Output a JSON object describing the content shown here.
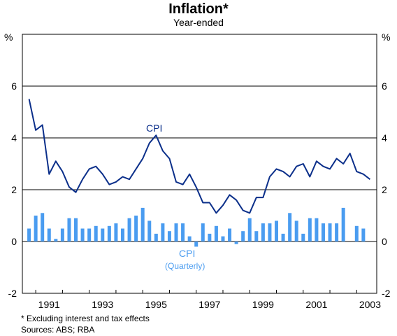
{
  "title": "Inflation*",
  "subtitle": "Year-ended",
  "unit_left": "%",
  "unit_right": "%",
  "footnote": "* Excluding interest and tax effects",
  "sources": "Sources: ABS; RBA",
  "colors": {
    "line": "#0b2f8a",
    "bars": "#4a9cf0",
    "grid": "#000000"
  },
  "chart_data": {
    "type": "line+bar",
    "ylim": [
      -2,
      8
    ],
    "yticks": [
      -2,
      0,
      2,
      4,
      6
    ],
    "xticks": [
      "1991",
      "1993",
      "1995",
      "1997",
      "1999",
      "2001",
      "2003"
    ],
    "x_start": 1990.5,
    "x_end": 2003.75,
    "grid": true,
    "annotations": [
      {
        "text": "CPI",
        "series": "line"
      },
      {
        "text": "CPI",
        "series": "bars"
      },
      {
        "text": "(Quarterly)",
        "series": "bars"
      }
    ],
    "series": [
      {
        "kind": "line",
        "x": [
          1990.75,
          1991.0,
          1991.25,
          1991.5,
          1991.75,
          1992.0,
          1992.25,
          1992.5,
          1992.75,
          1993.0,
          1993.25,
          1993.5,
          1993.75,
          1994.0,
          1994.25,
          1994.5,
          1994.75,
          1995.0,
          1995.25,
          1995.5,
          1995.75,
          1996.0,
          1996.25,
          1996.5,
          1996.75,
          1997.0,
          1997.25,
          1997.5,
          1997.75,
          1998.0,
          1998.25,
          1998.5,
          1998.75,
          1999.0,
          1999.25,
          1999.5,
          1999.75,
          2000.0,
          2000.25,
          2000.5,
          2000.75,
          2001.0,
          2001.25,
          2001.5,
          2001.75,
          2002.0,
          2002.25,
          2002.5,
          2002.75,
          2003.0,
          2003.25,
          2003.5
        ],
        "values": [
          5.5,
          4.3,
          4.5,
          2.6,
          3.1,
          2.7,
          2.1,
          1.9,
          2.4,
          2.8,
          2.9,
          2.6,
          2.2,
          2.3,
          2.5,
          2.4,
          2.8,
          3.2,
          3.8,
          4.1,
          3.5,
          3.2,
          2.3,
          2.2,
          2.6,
          2.1,
          1.5,
          1.5,
          1.1,
          1.4,
          1.8,
          1.6,
          1.2,
          1.1,
          1.7,
          1.7,
          2.5,
          2.8,
          2.7,
          2.5,
          2.9,
          3.0,
          2.5,
          3.1,
          2.9,
          2.8,
          3.2,
          3.0,
          3.4,
          2.7,
          2.6,
          2.4
        ]
      },
      {
        "kind": "bar",
        "x": [
          1990.75,
          1991.0,
          1991.25,
          1991.5,
          1991.75,
          1992.0,
          1992.25,
          1992.5,
          1992.75,
          1993.0,
          1993.25,
          1993.5,
          1993.75,
          1994.0,
          1994.25,
          1994.5,
          1994.75,
          1995.0,
          1995.25,
          1995.5,
          1995.75,
          1996.0,
          1996.25,
          1996.5,
          1996.75,
          1997.0,
          1997.25,
          1997.5,
          1997.75,
          1998.0,
          1998.25,
          1998.5,
          1998.75,
          1999.0,
          1999.25,
          1999.5,
          1999.75,
          2000.0,
          2000.25,
          2000.5,
          2000.75,
          2001.0,
          2001.25,
          2001.5,
          2001.75,
          2002.0,
          2002.25,
          2002.5,
          2002.75,
          2003.0,
          2003.25,
          2003.5
        ],
        "values": [
          0.5,
          1.0,
          1.1,
          0.5,
          0.1,
          0.5,
          0.9,
          0.9,
          0.5,
          0.5,
          0.6,
          0.5,
          0.6,
          0.7,
          0.5,
          0.9,
          1.0,
          1.3,
          0.8,
          0.3,
          0.7,
          0.4,
          0.7,
          0.7,
          0.2,
          -0.2,
          0.7,
          0.3,
          0.6,
          0.2,
          0.5,
          -0.1,
          0.4,
          0.9,
          0.4,
          0.7,
          0.7,
          0.8,
          0.3,
          1.1,
          0.8,
          0.3,
          0.9,
          0.9,
          0.7,
          0.7,
          0.7,
          1.3,
          0.0,
          0.6,
          0.5,
          0.0
        ]
      }
    ]
  }
}
